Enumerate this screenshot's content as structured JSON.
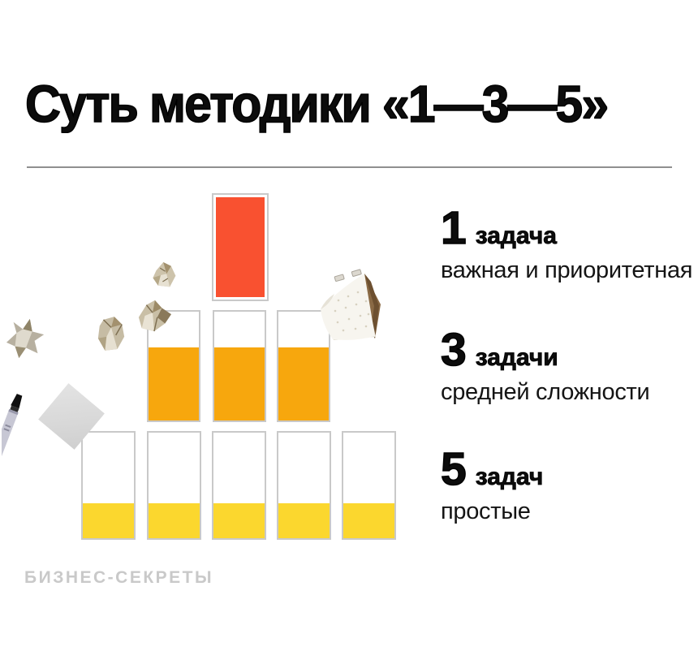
{
  "title": "Суть методики «1—3—5»",
  "brand": "БИЗНЕС-СЕКРЕТЫ",
  "legend": [
    {
      "number": "1",
      "noun": "задача",
      "desc": "важная и приоритетная"
    },
    {
      "number": "3",
      "noun": "задачи",
      "desc": "средней сложности"
    },
    {
      "number": "5",
      "noun": "задач",
      "desc": "простые"
    }
  ],
  "chart_data": {
    "type": "bar",
    "title": "Суть методики «1—3—5»",
    "rows": [
      {
        "count": 1,
        "fill_percent": 100,
        "fill_color": "#f95130",
        "label": "1 задача — важная и приоритетная"
      },
      {
        "count": 3,
        "fill_percent": 67,
        "fill_color": "#f7a70d",
        "label": "3 задачи — средней сложности"
      },
      {
        "count": 5,
        "fill_percent": 33,
        "fill_color": "#fbd72e",
        "label": "5 задач — простые"
      }
    ]
  },
  "colors": {
    "red-fill": "#f95130",
    "orange-fill": "#f7a70d",
    "yellow-fill": "#fbd72e",
    "card-border": "#c9c9c9",
    "divider": "#8f8f8f",
    "brand-text": "#c9c9c9",
    "text": "#0c0c0c"
  },
  "icons": {
    "crumpled-paper": "smashed paper ball",
    "paper-scrap": "torn paper scrap",
    "sticky-note": "gray sticky note",
    "marker-pen": "black marker pen",
    "desk-calendar": "flip desk calendar"
  }
}
